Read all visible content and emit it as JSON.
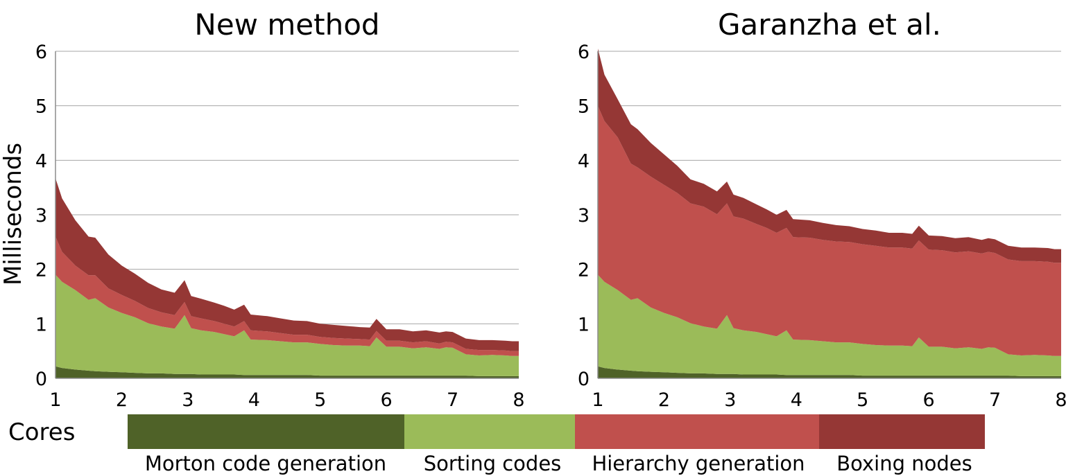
{
  "chart_data": {
    "ylabel": "Milliseconds",
    "xlabel": "Cores",
    "legend": {
      "placement": "bottom",
      "entries": [
        {
          "name": "Morton code generation",
          "color": "#4f6228"
        },
        {
          "name": "Sorting codes",
          "color": "#9bbb59"
        },
        {
          "name": "Hierarchy generation",
          "color": "#c0504d"
        },
        {
          "name": "Boxing nodes",
          "color": "#953735"
        }
      ]
    },
    "panels": [
      {
        "type": "area",
        "stacked": true,
        "title": "New method",
        "x": [
          1.0,
          1.1,
          1.3,
          1.5,
          1.6,
          1.8,
          2.0,
          2.2,
          2.4,
          2.6,
          2.8,
          2.95,
          3.05,
          3.2,
          3.4,
          3.55,
          3.7,
          3.85,
          3.95,
          4.2,
          4.4,
          4.6,
          4.8,
          5.0,
          5.2,
          5.4,
          5.6,
          5.75,
          5.85,
          6.0,
          6.2,
          6.4,
          6.6,
          6.8,
          6.9,
          7.0,
          7.2,
          7.4,
          7.6,
          7.8,
          7.9,
          8.0
        ],
        "xlim": [
          1,
          8
        ],
        "ylim": [
          0,
          6
        ],
        "xticks": [
          1,
          2,
          3,
          4,
          5,
          6,
          7,
          8
        ],
        "yticks": [
          0,
          1,
          2,
          3,
          4,
          5,
          6
        ],
        "grid": true,
        "series": [
          {
            "name": "Morton code generation",
            "values": [
              0.22,
              0.19,
              0.16,
              0.14,
              0.13,
              0.12,
              0.11,
              0.1,
              0.09,
              0.09,
              0.08,
              0.08,
              0.08,
              0.07,
              0.07,
              0.07,
              0.07,
              0.06,
              0.06,
              0.06,
              0.06,
              0.06,
              0.06,
              0.05,
              0.05,
              0.05,
              0.05,
              0.05,
              0.05,
              0.05,
              0.05,
              0.05,
              0.05,
              0.05,
              0.05,
              0.05,
              0.05,
              0.04,
              0.04,
              0.04,
              0.04,
              0.04
            ]
          },
          {
            "name": "Sorting codes",
            "values": [
              1.68,
              1.58,
              1.46,
              1.3,
              1.34,
              1.18,
              1.09,
              1.02,
              0.92,
              0.86,
              0.83,
              1.08,
              0.84,
              0.81,
              0.78,
              0.74,
              0.7,
              0.82,
              0.65,
              0.64,
              0.62,
              0.6,
              0.6,
              0.58,
              0.56,
              0.55,
              0.55,
              0.54,
              0.7,
              0.53,
              0.53,
              0.5,
              0.52,
              0.49,
              0.52,
              0.51,
              0.39,
              0.38,
              0.39,
              0.38,
              0.37,
              0.37
            ]
          },
          {
            "name": "Hierarchy generation",
            "values": [
              0.7,
              0.55,
              0.45,
              0.45,
              0.42,
              0.35,
              0.33,
              0.3,
              0.28,
              0.26,
              0.25,
              0.24,
              0.22,
              0.22,
              0.2,
              0.19,
              0.18,
              0.17,
              0.17,
              0.16,
              0.15,
              0.14,
              0.14,
              0.13,
              0.13,
              0.13,
              0.12,
              0.12,
              0.12,
              0.11,
              0.11,
              0.11,
              0.11,
              0.1,
              0.1,
              0.1,
              0.1,
              0.1,
              0.09,
              0.09,
              0.09,
              0.09
            ]
          },
          {
            "name": "Boxing nodes",
            "values": [
              1.07,
              0.98,
              0.83,
              0.71,
              0.69,
              0.62,
              0.54,
              0.5,
              0.46,
              0.42,
              0.41,
              0.4,
              0.37,
              0.36,
              0.34,
              0.33,
              0.31,
              0.3,
              0.29,
              0.28,
              0.27,
              0.26,
              0.25,
              0.24,
              0.24,
              0.23,
              0.22,
              0.22,
              0.22,
              0.21,
              0.21,
              0.2,
              0.2,
              0.2,
              0.19,
              0.19,
              0.19,
              0.18,
              0.18,
              0.18,
              0.18,
              0.18
            ]
          }
        ]
      },
      {
        "type": "area",
        "stacked": true,
        "title": "Garanzha et al.",
        "x": [
          1.0,
          1.1,
          1.3,
          1.5,
          1.6,
          1.8,
          2.0,
          2.2,
          2.4,
          2.6,
          2.8,
          2.95,
          3.05,
          3.2,
          3.4,
          3.55,
          3.7,
          3.85,
          3.95,
          4.2,
          4.4,
          4.6,
          4.8,
          5.0,
          5.2,
          5.4,
          5.6,
          5.75,
          5.85,
          6.0,
          6.2,
          6.4,
          6.6,
          6.8,
          6.9,
          7.0,
          7.2,
          7.4,
          7.6,
          7.8,
          7.9,
          8.0
        ],
        "xlim": [
          1,
          8
        ],
        "ylim": [
          0,
          6
        ],
        "xticks": [
          1,
          2,
          3,
          4,
          5,
          6,
          7,
          8
        ],
        "yticks": [
          0,
          1,
          2,
          3,
          4,
          5,
          6
        ],
        "grid": true,
        "series": [
          {
            "name": "Morton code generation",
            "values": [
              0.22,
              0.19,
              0.16,
              0.14,
              0.13,
              0.12,
              0.11,
              0.1,
              0.09,
              0.09,
              0.08,
              0.08,
              0.08,
              0.07,
              0.07,
              0.07,
              0.07,
              0.06,
              0.06,
              0.06,
              0.06,
              0.06,
              0.06,
              0.05,
              0.05,
              0.05,
              0.05,
              0.05,
              0.05,
              0.05,
              0.05,
              0.05,
              0.05,
              0.05,
              0.05,
              0.05,
              0.05,
              0.04,
              0.04,
              0.04,
              0.04,
              0.04
            ]
          },
          {
            "name": "Sorting codes",
            "values": [
              1.68,
              1.58,
              1.46,
              1.3,
              1.34,
              1.18,
              1.09,
              1.02,
              0.92,
              0.86,
              0.83,
              1.08,
              0.84,
              0.81,
              0.78,
              0.74,
              0.7,
              0.82,
              0.65,
              0.64,
              0.62,
              0.6,
              0.6,
              0.58,
              0.56,
              0.55,
              0.55,
              0.54,
              0.7,
              0.53,
              0.53,
              0.5,
              0.52,
              0.49,
              0.52,
              0.51,
              0.39,
              0.38,
              0.39,
              0.38,
              0.37,
              0.37
            ]
          },
          {
            "name": "Hierarchy generation",
            "values": [
              3.1,
              2.95,
              2.8,
              2.5,
              2.4,
              2.4,
              2.35,
              2.28,
              2.2,
              2.2,
              2.1,
              2.05,
              2.05,
              2.05,
              1.98,
              1.95,
              1.9,
              1.88,
              1.88,
              1.88,
              1.86,
              1.85,
              1.84,
              1.83,
              1.82,
              1.8,
              1.8,
              1.79,
              1.78,
              1.78,
              1.77,
              1.76,
              1.76,
              1.75,
              1.75,
              1.74,
              1.74,
              1.73,
              1.72,
              1.72,
              1.71,
              1.71
            ]
          },
          {
            "name": "Boxing nodes",
            "values": [
              1.05,
              0.85,
              0.7,
              0.72,
              0.7,
              0.62,
              0.56,
              0.5,
              0.44,
              0.42,
              0.42,
              0.4,
              0.4,
              0.38,
              0.36,
              0.34,
              0.33,
              0.33,
              0.33,
              0.32,
              0.31,
              0.3,
              0.29,
              0.28,
              0.28,
              0.27,
              0.27,
              0.27,
              0.27,
              0.26,
              0.26,
              0.26,
              0.26,
              0.25,
              0.25,
              0.25,
              0.25,
              0.25,
              0.25,
              0.25,
              0.25,
              0.25
            ]
          }
        ]
      }
    ]
  }
}
